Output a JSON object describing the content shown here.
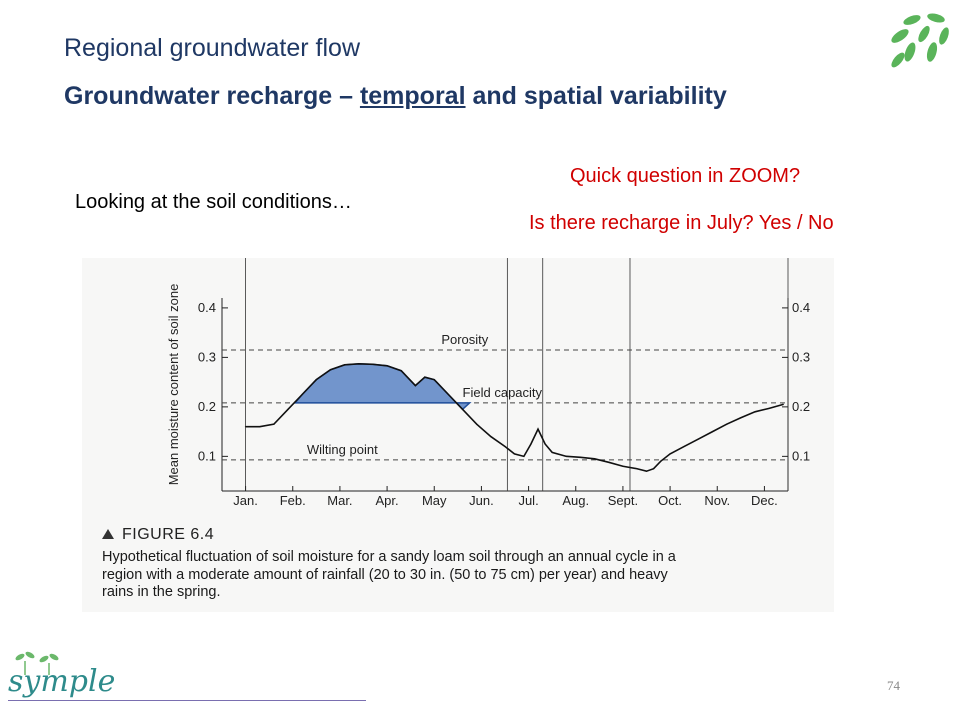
{
  "slide": {
    "title": "Regional groundwater flow",
    "subtitle_part1": "Groundwater recharge – ",
    "subtitle_underlined": "temporal",
    "subtitle_part2": " and spatial variability",
    "intro": "Looking at the soil conditions…",
    "question1": "Quick question in ZOOM?",
    "question2": "Is there recharge in July? Yes / No",
    "page_number": "74",
    "logo_text": "symple",
    "accent_color": "#d00000",
    "title_color": "#1f3864"
  },
  "figure": {
    "label": "FIGURE 6.4",
    "caption_lines": [
      "Hypothetical fluctuation of soil moisture for a sandy loam soil through an annual cycle in a",
      "region with a moderate amount of rainfall (20 to 30 in. (50 to 75 cm) per year) and heavy",
      "rains in the spring."
    ]
  },
  "chart_data": {
    "type": "line",
    "ylabel": "Mean moisture content of soil zone",
    "xlabel": "",
    "categories": [
      "Jan.",
      "Feb.",
      "Mar.",
      "Apr.",
      "May",
      "Jun.",
      "Jul.",
      "Aug.",
      "Sept.",
      "Oct.",
      "Nov.",
      "Dec."
    ],
    "yticks": [
      "0.1",
      "0.2",
      "0.3",
      "0.4"
    ],
    "ylim": [
      0.03,
      0.42
    ],
    "x": [
      0.0,
      0.3,
      0.6,
      0.9,
      1.2,
      1.5,
      1.8,
      2.1,
      2.4,
      2.7,
      3.0,
      3.3,
      3.6,
      3.8,
      4.0,
      4.3,
      4.6,
      4.9,
      5.2,
      5.5,
      5.7,
      5.9,
      6.05,
      6.2,
      6.35,
      6.5,
      6.8,
      7.1,
      7.4,
      7.7,
      8.0,
      8.3,
      8.5,
      8.65,
      8.8,
      9.0,
      9.3,
      9.6,
      9.9,
      10.2,
      10.5,
      10.8,
      11.1,
      11.4
    ],
    "series": [
      {
        "values": [
          0.16,
          0.16,
          0.165,
          0.195,
          0.225,
          0.255,
          0.275,
          0.285,
          0.287,
          0.286,
          0.283,
          0.273,
          0.243,
          0.26,
          0.255,
          0.225,
          0.195,
          0.165,
          0.14,
          0.12,
          0.105,
          0.1,
          0.125,
          0.155,
          0.125,
          0.108,
          0.1,
          0.098,
          0.095,
          0.088,
          0.08,
          0.075,
          0.07,
          0.075,
          0.09,
          0.105,
          0.12,
          0.135,
          0.15,
          0.165,
          0.178,
          0.19,
          0.197,
          0.205
        ]
      }
    ],
    "reference_lines": [
      {
        "label": "Porosity",
        "value": 0.315
      },
      {
        "label": "Field capacity",
        "value": 0.208
      },
      {
        "label": "Wilting point",
        "value": 0.093
      }
    ],
    "highlight": {
      "description_label": "",
      "x_start": 1.05,
      "x_end": 4.75,
      "base": 0.208,
      "fill_color": "#5b84c4"
    },
    "grid": false
  }
}
